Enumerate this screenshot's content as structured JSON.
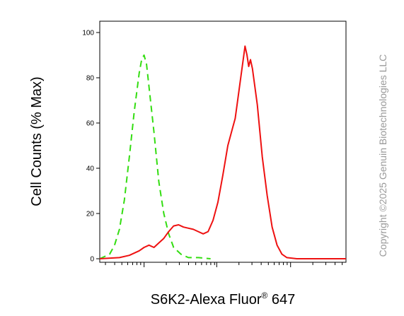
{
  "chart_data": {
    "type": "line",
    "title": "",
    "ylabel": "Cell Counts (% Max)",
    "xlabel": {
      "main": "S6K2-Alexa Fluor",
      "superscript": "®",
      "suffix": " 647"
    },
    "ylim": [
      0,
      100
    ],
    "yticks": [
      "0",
      "20",
      "40",
      "60",
      "80",
      "100"
    ],
    "x_scale": "log",
    "x_tick_labels_shown": false,
    "grid": false,
    "legend": "none",
    "series": [
      {
        "style": "dashed",
        "color": "#33dd11",
        "points": [
          [
            0.0,
            0
          ],
          [
            0.04,
            2
          ],
          [
            0.06,
            6
          ],
          [
            0.08,
            13
          ],
          [
            0.1,
            26
          ],
          [
            0.12,
            45
          ],
          [
            0.14,
            65
          ],
          [
            0.16,
            82
          ],
          [
            0.17,
            88
          ],
          [
            0.18,
            90
          ],
          [
            0.19,
            86
          ],
          [
            0.2,
            76
          ],
          [
            0.22,
            56
          ],
          [
            0.24,
            34
          ],
          [
            0.26,
            20
          ],
          [
            0.28,
            11
          ],
          [
            0.3,
            5
          ],
          [
            0.33,
            2
          ],
          [
            0.36,
            0.5
          ],
          [
            0.4,
            0.5
          ],
          [
            0.45,
            0
          ]
        ]
      },
      {
        "style": "solid",
        "color": "#ee1111",
        "points": [
          [
            0.0,
            0
          ],
          [
            0.08,
            0.5
          ],
          [
            0.12,
            1.5
          ],
          [
            0.16,
            3.5
          ],
          [
            0.18,
            5
          ],
          [
            0.2,
            6
          ],
          [
            0.22,
            5
          ],
          [
            0.24,
            7
          ],
          [
            0.26,
            9
          ],
          [
            0.28,
            12
          ],
          [
            0.3,
            14.5
          ],
          [
            0.32,
            15
          ],
          [
            0.34,
            14
          ],
          [
            0.36,
            13.5
          ],
          [
            0.38,
            13
          ],
          [
            0.4,
            12
          ],
          [
            0.42,
            11
          ],
          [
            0.44,
            12
          ],
          [
            0.46,
            17
          ],
          [
            0.48,
            25
          ],
          [
            0.5,
            37
          ],
          [
            0.52,
            50
          ],
          [
            0.54,
            58
          ],
          [
            0.55,
            62
          ],
          [
            0.56,
            70
          ],
          [
            0.575,
            82
          ],
          [
            0.585,
            90
          ],
          [
            0.59,
            94
          ],
          [
            0.598,
            90
          ],
          [
            0.605,
            85
          ],
          [
            0.612,
            88
          ],
          [
            0.62,
            84
          ],
          [
            0.64,
            68
          ],
          [
            0.66,
            45
          ],
          [
            0.68,
            28
          ],
          [
            0.7,
            14
          ],
          [
            0.72,
            6
          ],
          [
            0.74,
            2
          ],
          [
            0.76,
            0.5
          ],
          [
            0.8,
            0
          ],
          [
            1.0,
            0
          ]
        ]
      }
    ]
  },
  "watermark": "Copyright ©2025 Genuin Biotechnologies LLC"
}
